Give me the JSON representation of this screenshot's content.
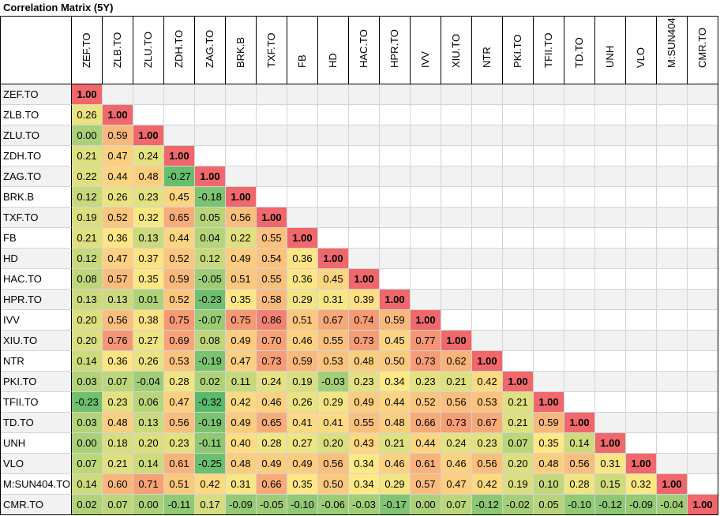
{
  "title": "Correlation Matrix (5Y)",
  "tickers": [
    "ZEF.TO",
    "ZLB.TO",
    "ZLU.TO",
    "ZDH.TO",
    "ZAG.TO",
    "BRK.B",
    "TXF.TO",
    "FB",
    "HD",
    "HAC.TO",
    "HPR.TO",
    "IVV",
    "XIU.TO",
    "NTR",
    "PKI.TO",
    "TFII.TO",
    "TD.TO",
    "UNH",
    "VLO",
    "M:SUN404.TO",
    "CMR.TO"
  ],
  "row_labels": [
    "ZEF.TO",
    "ZLB.TO",
    "ZLU.TO",
    "ZDH.TO",
    "ZAG.TO",
    "BRK.B",
    "TXF.TO",
    "FB",
    "HD",
    "HAC.TO",
    "HPR.TO",
    "IVV",
    "XIU.TO",
    "NTR",
    "PKI.TO",
    "TFII.TO",
    "TD.TO",
    "UNH",
    "VLO",
    "M:SUN404.TO",
    "CMR.TO"
  ],
  "matrix": [
    [
      "1.00"
    ],
    [
      "0.26",
      "1.00"
    ],
    [
      "0.00",
      "0.59",
      "1.00"
    ],
    [
      "0.21",
      "0.47",
      "0.24",
      "1.00"
    ],
    [
      "0.22",
      "0.44",
      "0.48",
      "-0.27",
      "1.00"
    ],
    [
      "0.12",
      "0.26",
      "0.23",
      "0.45",
      "-0.18",
      "1.00"
    ],
    [
      "0.19",
      "0.52",
      "0.32",
      "0.65",
      "0.05",
      "0.56",
      "1.00"
    ],
    [
      "0.21",
      "0.36",
      "0.13",
      "0.44",
      "0.04",
      "0.22",
      "0.55",
      "1.00"
    ],
    [
      "0.12",
      "0.47",
      "0.37",
      "0.52",
      "0.12",
      "0.49",
      "0.54",
      "0.36",
      "1.00"
    ],
    [
      "0.08",
      "0.57",
      "0.35",
      "0.59",
      "-0.05",
      "0.51",
      "0.55",
      "0.36",
      "0.45",
      "1.00"
    ],
    [
      "0.13",
      "0.13",
      "0.01",
      "0.52",
      "-0.23",
      "0.35",
      "0.58",
      "0.29",
      "0.31",
      "0.39",
      "1.00"
    ],
    [
      "0.20",
      "0.56",
      "0.38",
      "0.75",
      "-0.07",
      "0.75",
      "0.86",
      "0.51",
      "0.67",
      "0.74",
      "0.59",
      "1.00"
    ],
    [
      "0.20",
      "0.76",
      "0.27",
      "0.69",
      "0.08",
      "0.49",
      "0.70",
      "0.46",
      "0.55",
      "0.73",
      "0.45",
      "0.77",
      "1.00"
    ],
    [
      "0.14",
      "0.36",
      "0.26",
      "0.53",
      "-0.19",
      "0.47",
      "0.73",
      "0.59",
      "0.53",
      "0.48",
      "0.50",
      "0.73",
      "0.62",
      "1.00"
    ],
    [
      "0.03",
      "0.07",
      "-0.04",
      "0.28",
      "0.02",
      "0.11",
      "0.24",
      "0.19",
      "-0.03",
      "0.23",
      "0.34",
      "0.23",
      "0.21",
      "0.42",
      "1.00"
    ],
    [
      "-0.23",
      "0.23",
      "0.06",
      "0.47",
      "-0.32",
      "0.42",
      "0.46",
      "0.26",
      "0.29",
      "0.49",
      "0.44",
      "0.52",
      "0.56",
      "0.53",
      "0.21",
      "1.00"
    ],
    [
      "0.03",
      "0.48",
      "0.13",
      "0.56",
      "-0.19",
      "0.49",
      "0.65",
      "0.41",
      "0.41",
      "0.55",
      "0.48",
      "0.66",
      "0.73",
      "0.67",
      "0.21",
      "0.59",
      "1.00"
    ],
    [
      "0.00",
      "0.18",
      "0.20",
      "0.23",
      "-0.11",
      "0.40",
      "0.28",
      "0.27",
      "0.20",
      "0.43",
      "0.21",
      "0.44",
      "0.24",
      "0.23",
      "0.07",
      "0.35",
      "0.14",
      "1.00"
    ],
    [
      "0.07",
      "0.21",
      "0.14",
      "0.61",
      "-0.25",
      "0.48",
      "0.49",
      "0.49",
      "0.56",
      "0.34",
      "0.46",
      "0.61",
      "0.46",
      "0.56",
      "0.20",
      "0.48",
      "0.56",
      "0.31",
      "1.00"
    ],
    [
      "0.14",
      "0.60",
      "0.71",
      "0.51",
      "0.42",
      "0.31",
      "0.66",
      "0.35",
      "0.50",
      "0.34",
      "0.29",
      "0.57",
      "0.47",
      "0.42",
      "0.19",
      "0.10",
      "0.28",
      "0.15",
      "0.32",
      "1.00"
    ],
    [
      "0.02",
      "0.07",
      "0.00",
      "-0.11",
      "0.17",
      "-0.09",
      "-0.05",
      "-0.10",
      "-0.06",
      "-0.03",
      "-0.17",
      "0.00",
      "0.07",
      "-0.12",
      "-0.02",
      "0.05",
      "-0.10",
      "-0.12",
      "-0.09",
      "-0.04",
      "1.00"
    ]
  ],
  "colors": {
    "low": "#5aba6b",
    "mid": "#ffe985",
    "high": "#f0686c",
    "stripe": "#f2f2f2"
  }
}
